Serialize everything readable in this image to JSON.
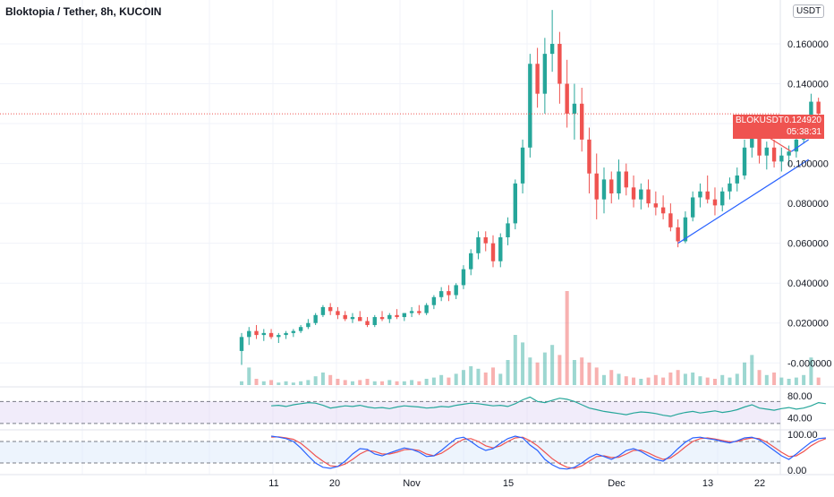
{
  "header": {
    "title": "Bloktopia / Tether, 8h, KUCOIN",
    "currency_button": "USDT"
  },
  "price_tag": {
    "symbol": "BLOKUSDT",
    "price": "0.124920",
    "countdown": "05:38:31"
  },
  "colors": {
    "up": "#26a69a",
    "down": "#ef5350",
    "rsi_line": "#26a69a",
    "stoch_k": "#2962ff",
    "stoch_d": "#ef5350",
    "trendline": "#2962ff",
    "price_line": "#ef5350"
  },
  "chart_data": {
    "type": "candlestick",
    "title": "Bloktopia / Tether, 8h, KUCOIN",
    "x_ticks": [
      "11",
      "20",
      "Nov",
      "15",
      "Dec",
      "13",
      "22"
    ],
    "y_ticks": [
      "0.160000",
      "0.140000",
      "0.100000",
      "0.080000",
      "0.060000",
      "0.040000",
      "0.020000",
      "-0.000000"
    ],
    "ylim": [
      -0.012,
      0.182
    ],
    "last_price": 0.12492,
    "price_line": 0.12492,
    "candles": [
      [
        0.0,
        0.006,
        0.015,
        -0.001,
        0.013
      ],
      [
        0.3,
        0.013,
        0.018,
        0.009,
        0.016
      ],
      [
        0.6,
        0.016,
        0.019,
        0.012,
        0.014
      ],
      [
        0.9,
        0.014,
        0.017,
        0.011,
        0.015
      ],
      [
        1.2,
        0.015,
        0.017,
        0.012,
        0.013
      ],
      [
        1.5,
        0.013,
        0.015,
        0.01,
        0.014
      ],
      [
        1.8,
        0.014,
        0.016,
        0.012,
        0.015
      ],
      [
        2.1,
        0.015,
        0.017,
        0.013,
        0.016
      ],
      [
        2.4,
        0.016,
        0.019,
        0.015,
        0.018
      ],
      [
        2.7,
        0.018,
        0.022,
        0.017,
        0.02
      ],
      [
        3.0,
        0.02,
        0.025,
        0.019,
        0.024
      ],
      [
        3.3,
        0.024,
        0.029,
        0.023,
        0.028
      ],
      [
        3.6,
        0.028,
        0.03,
        0.024,
        0.026
      ],
      [
        3.9,
        0.026,
        0.028,
        0.022,
        0.024
      ],
      [
        4.2,
        0.024,
        0.026,
        0.021,
        0.022
      ],
      [
        4.5,
        0.022,
        0.025,
        0.02,
        0.023
      ],
      [
        4.8,
        0.023,
        0.026,
        0.021,
        0.021
      ],
      [
        5.1,
        0.021,
        0.023,
        0.018,
        0.019
      ],
      [
        5.4,
        0.019,
        0.024,
        0.018,
        0.023
      ],
      [
        5.7,
        0.023,
        0.026,
        0.021,
        0.022
      ],
      [
        6.0,
        0.022,
        0.025,
        0.02,
        0.024
      ],
      [
        6.3,
        0.024,
        0.027,
        0.022,
        0.023
      ],
      [
        6.6,
        0.023,
        0.025,
        0.021,
        0.025
      ],
      [
        6.9,
        0.025,
        0.028,
        0.023,
        0.026
      ],
      [
        7.2,
        0.026,
        0.029,
        0.024,
        0.025
      ],
      [
        7.5,
        0.025,
        0.03,
        0.024,
        0.029
      ],
      [
        7.8,
        0.029,
        0.034,
        0.027,
        0.033
      ],
      [
        8.1,
        0.033,
        0.038,
        0.031,
        0.036
      ],
      [
        8.4,
        0.036,
        0.039,
        0.031,
        0.034
      ],
      [
        8.7,
        0.034,
        0.04,
        0.032,
        0.039
      ],
      [
        9.0,
        0.039,
        0.049,
        0.037,
        0.047
      ],
      [
        9.3,
        0.047,
        0.057,
        0.044,
        0.055
      ],
      [
        9.6,
        0.055,
        0.066,
        0.052,
        0.063
      ],
      [
        9.9,
        0.063,
        0.066,
        0.056,
        0.06
      ],
      [
        10.2,
        0.06,
        0.064,
        0.048,
        0.051
      ],
      [
        10.5,
        0.051,
        0.065,
        0.048,
        0.063
      ],
      [
        10.8,
        0.063,
        0.073,
        0.059,
        0.07
      ],
      [
        11.1,
        0.07,
        0.092,
        0.067,
        0.09
      ],
      [
        11.4,
        0.09,
        0.112,
        0.085,
        0.108
      ],
      [
        11.7,
        0.108,
        0.155,
        0.103,
        0.15
      ],
      [
        12.0,
        0.15,
        0.158,
        0.128,
        0.135
      ],
      [
        12.3,
        0.135,
        0.163,
        0.125,
        0.155
      ],
      [
        12.6,
        0.155,
        0.177,
        0.146,
        0.16
      ],
      [
        12.9,
        0.16,
        0.166,
        0.13,
        0.14
      ],
      [
        13.2,
        0.14,
        0.152,
        0.118,
        0.125
      ],
      [
        13.5,
        0.125,
        0.14,
        0.112,
        0.13
      ],
      [
        13.8,
        0.13,
        0.138,
        0.106,
        0.112
      ],
      [
        14.1,
        0.112,
        0.118,
        0.085,
        0.095
      ],
      [
        14.4,
        0.095,
        0.105,
        0.072,
        0.082
      ],
      [
        14.7,
        0.082,
        0.098,
        0.075,
        0.092
      ],
      [
        15.0,
        0.092,
        0.096,
        0.08,
        0.085
      ],
      [
        15.3,
        0.085,
        0.102,
        0.082,
        0.096
      ],
      [
        15.6,
        0.096,
        0.1,
        0.084,
        0.088
      ],
      [
        15.9,
        0.088,
        0.094,
        0.078,
        0.082
      ],
      [
        16.2,
        0.082,
        0.09,
        0.077,
        0.087
      ],
      [
        16.5,
        0.087,
        0.092,
        0.078,
        0.08
      ],
      [
        16.8,
        0.08,
        0.086,
        0.074,
        0.078
      ],
      [
        17.1,
        0.078,
        0.084,
        0.072,
        0.075
      ],
      [
        17.4,
        0.075,
        0.08,
        0.066,
        0.068
      ],
      [
        17.7,
        0.068,
        0.072,
        0.058,
        0.061
      ],
      [
        18.0,
        0.061,
        0.076,
        0.06,
        0.073
      ],
      [
        18.3,
        0.073,
        0.086,
        0.071,
        0.083
      ],
      [
        18.6,
        0.083,
        0.09,
        0.078,
        0.086
      ],
      [
        18.9,
        0.086,
        0.094,
        0.08,
        0.082
      ],
      [
        19.2,
        0.082,
        0.088,
        0.074,
        0.079
      ],
      [
        19.5,
        0.079,
        0.088,
        0.076,
        0.086
      ],
      [
        19.8,
        0.086,
        0.093,
        0.082,
        0.09
      ],
      [
        20.1,
        0.09,
        0.098,
        0.086,
        0.094
      ],
      [
        20.4,
        0.094,
        0.112,
        0.092,
        0.108
      ],
      [
        20.7,
        0.108,
        0.117,
        0.103,
        0.114
      ],
      [
        21.0,
        0.114,
        0.117,
        0.1,
        0.104
      ],
      [
        21.3,
        0.104,
        0.111,
        0.097,
        0.108
      ],
      [
        21.6,
        0.108,
        0.112,
        0.098,
        0.101
      ],
      [
        21.9,
        0.101,
        0.108,
        0.096,
        0.104
      ],
      [
        22.2,
        0.104,
        0.109,
        0.099,
        0.106
      ],
      [
        22.5,
        0.106,
        0.114,
        0.103,
        0.112
      ],
      [
        22.8,
        0.112,
        0.121,
        0.11,
        0.118
      ],
      [
        23.1,
        0.118,
        0.135,
        0.117,
        0.131
      ],
      [
        23.4,
        0.131,
        0.133,
        0.119,
        0.125
      ]
    ],
    "volume": [
      [
        0.0,
        3,
        1
      ],
      [
        0.3,
        14,
        1
      ],
      [
        0.6,
        5,
        0
      ],
      [
        0.9,
        3,
        1
      ],
      [
        1.2,
        4,
        0
      ],
      [
        1.5,
        2,
        1
      ],
      [
        1.8,
        3,
        1
      ],
      [
        2.1,
        2,
        1
      ],
      [
        2.4,
        3,
        1
      ],
      [
        2.7,
        4,
        1
      ],
      [
        3.0,
        7,
        1
      ],
      [
        3.3,
        10,
        1
      ],
      [
        3.6,
        8,
        0
      ],
      [
        3.9,
        5,
        0
      ],
      [
        4.2,
        4,
        0
      ],
      [
        4.5,
        3,
        1
      ],
      [
        4.8,
        4,
        0
      ],
      [
        5.1,
        5,
        0
      ],
      [
        5.4,
        3,
        1
      ],
      [
        5.7,
        3,
        0
      ],
      [
        6.0,
        4,
        1
      ],
      [
        6.3,
        3,
        0
      ],
      [
        6.6,
        3,
        1
      ],
      [
        6.9,
        4,
        1
      ],
      [
        7.2,
        3,
        0
      ],
      [
        7.5,
        5,
        1
      ],
      [
        7.8,
        6,
        1
      ],
      [
        8.1,
        8,
        1
      ],
      [
        8.4,
        6,
        0
      ],
      [
        8.7,
        9,
        1
      ],
      [
        9.0,
        12,
        1
      ],
      [
        9.3,
        15,
        1
      ],
      [
        9.6,
        13,
        1
      ],
      [
        9.9,
        10,
        0
      ],
      [
        10.2,
        14,
        0
      ],
      [
        10.5,
        9,
        1
      ],
      [
        10.8,
        20,
        1
      ],
      [
        11.1,
        40,
        1
      ],
      [
        11.4,
        34,
        1
      ],
      [
        11.7,
        22,
        1
      ],
      [
        12.0,
        18,
        0
      ],
      [
        12.3,
        26,
        1
      ],
      [
        12.6,
        32,
        1
      ],
      [
        12.9,
        24,
        0
      ],
      [
        13.2,
        75,
        0
      ],
      [
        13.5,
        20,
        1
      ],
      [
        13.8,
        22,
        0
      ],
      [
        14.1,
        18,
        0
      ],
      [
        14.4,
        14,
        0
      ],
      [
        14.7,
        8,
        1
      ],
      [
        15.0,
        12,
        0
      ],
      [
        15.3,
        9,
        1
      ],
      [
        15.6,
        7,
        0
      ],
      [
        15.9,
        6,
        0
      ],
      [
        16.2,
        5,
        1
      ],
      [
        16.5,
        6,
        0
      ],
      [
        16.8,
        8,
        0
      ],
      [
        17.1,
        6,
        0
      ],
      [
        17.4,
        10,
        0
      ],
      [
        17.7,
        12,
        0
      ],
      [
        18.0,
        9,
        1
      ],
      [
        18.3,
        10,
        1
      ],
      [
        18.6,
        7,
        1
      ],
      [
        18.9,
        6,
        0
      ],
      [
        19.2,
        5,
        0
      ],
      [
        19.5,
        8,
        1
      ],
      [
        19.8,
        6,
        1
      ],
      [
        20.1,
        9,
        1
      ],
      [
        20.4,
        18,
        1
      ],
      [
        20.7,
        24,
        1
      ],
      [
        21.0,
        12,
        0
      ],
      [
        21.3,
        8,
        1
      ],
      [
        21.6,
        10,
        0
      ],
      [
        21.9,
        6,
        1
      ],
      [
        22.2,
        5,
        1
      ],
      [
        22.5,
        6,
        1
      ],
      [
        22.8,
        8,
        1
      ],
      [
        23.1,
        22,
        1
      ],
      [
        23.4,
        6,
        0
      ]
    ],
    "trendlines": [
      {
        "from": [
          17.7,
          0.06
        ],
        "to": [
          23.0,
          0.102
        ],
        "color": "#2962ff"
      },
      {
        "from": [
          21.0,
          0.116
        ],
        "to": [
          22.3,
          0.106
        ],
        "color": "#ef5350"
      },
      {
        "from": [
          22.3,
          0.106
        ],
        "to": [
          23.0,
          0.112
        ],
        "color": "#2962ff"
      }
    ],
    "rsi": {
      "ticks": [
        "80.00",
        "40.00"
      ],
      "levels": [
        70,
        30
      ],
      "ylim": [
        20,
        95
      ],
      "x_start": 1.2,
      "values": [
        62,
        63,
        61,
        64,
        66,
        68,
        67,
        63,
        58,
        60,
        62,
        61,
        63,
        60,
        58,
        59,
        57,
        60,
        62,
        61,
        60,
        58,
        59,
        61,
        60,
        63,
        65,
        67,
        66,
        64,
        62,
        63,
        61,
        66,
        73,
        78,
        70,
        68,
        72,
        76,
        74,
        70,
        64,
        58,
        55,
        52,
        50,
        48,
        46,
        49,
        51,
        50,
        48,
        45,
        43,
        47,
        50,
        52,
        49,
        51,
        53,
        50,
        52,
        55,
        60,
        64,
        58,
        56,
        54,
        57,
        59,
        56,
        58,
        62,
        68,
        66
      ]
    },
    "stoch": {
      "ticks": [
        "100.00",
        "0.00"
      ],
      "levels": [
        80,
        20
      ],
      "ylim": [
        -10,
        110
      ],
      "x_start": 1.2,
      "k": [
        95,
        92,
        88,
        80,
        62,
        40,
        20,
        8,
        5,
        10,
        25,
        45,
        60,
        58,
        45,
        40,
        48,
        55,
        62,
        58,
        50,
        38,
        40,
        55,
        72,
        88,
        92,
        80,
        65,
        55,
        60,
        75,
        88,
        95,
        90,
        70,
        55,
        30,
        15,
        5,
        3,
        8,
        20,
        35,
        45,
        38,
        30,
        40,
        55,
        60,
        52,
        40,
        30,
        25,
        40,
        60,
        78,
        90,
        92,
        88,
        85,
        80,
        76,
        82,
        90,
        92,
        85,
        70,
        55,
        40,
        30,
        45,
        62,
        78,
        88,
        90
      ],
      "d": [
        92,
        93,
        90,
        86,
        75,
        58,
        40,
        25,
        12,
        10,
        17,
        30,
        45,
        55,
        52,
        45,
        45,
        50,
        57,
        58,
        55,
        45,
        40,
        47,
        60,
        75,
        86,
        88,
        80,
        68,
        62,
        68,
        80,
        90,
        92,
        82,
        68,
        50,
        32,
        18,
        8,
        5,
        12,
        25,
        38,
        40,
        35,
        36,
        45,
        55,
        56,
        48,
        38,
        30,
        34,
        48,
        65,
        80,
        88,
        90,
        87,
        83,
        79,
        80,
        86,
        90,
        88,
        78,
        64,
        50,
        38,
        40,
        52,
        68,
        80,
        88
      ]
    }
  }
}
